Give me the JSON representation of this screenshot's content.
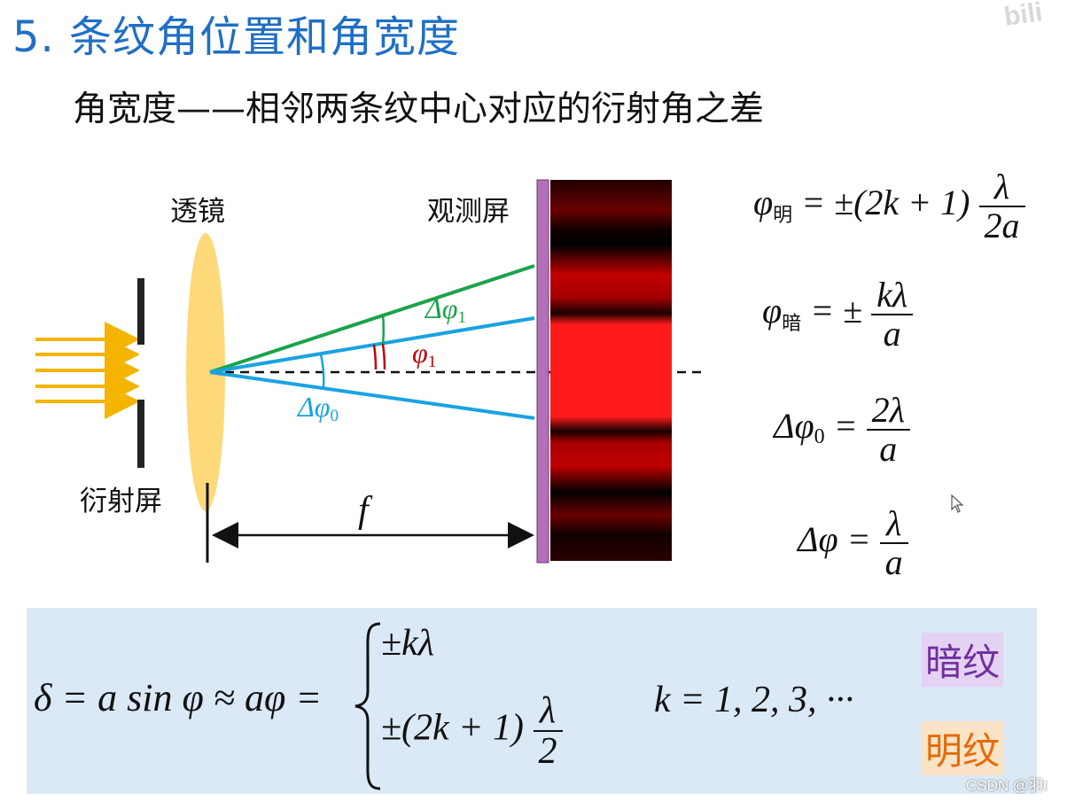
{
  "title": "5. 条纹角位置和角宽度",
  "subtitle": "角宽度——相邻两条纹中心对应的衍射角之差",
  "watermark": "bili",
  "labels": {
    "lens": "透镜",
    "screen": "观测屏",
    "slit_screen": "衍射屏",
    "focal": "f",
    "dphi1": "Δφ",
    "dphi1_sub": "1",
    "phi1": "φ",
    "phi1_sub": "1",
    "dphi0": "Δφ",
    "dphi0_sub": "0"
  },
  "formulas": {
    "bright": {
      "lhs": "φ",
      "sub": "明",
      "mid": "= ±(2k + 1)",
      "num": "λ",
      "den": "2a"
    },
    "dark": {
      "lhs": "φ",
      "sub": "暗",
      "mid": "= ±",
      "num": "kλ",
      "den": "a"
    },
    "central": {
      "lhs": "Δφ",
      "sub": "0",
      "mid": "=",
      "num": "2λ",
      "den": "a"
    },
    "width": {
      "lhs": "Δφ",
      "mid": "=",
      "num": "λ",
      "den": "a"
    }
  },
  "bottom": {
    "delta_eq": "δ = a sin φ ≈ aφ =",
    "case_dark": "±kλ",
    "case_bright": "±(2k + 1)",
    "case_bright_num": "λ",
    "case_bright_den": "2",
    "k_values": "k = 1, 2, 3, ···",
    "tag_dark": "暗纹",
    "tag_bright": "明纹"
  },
  "credit": "CSDN @羽t",
  "colors": {
    "title": "#1f6fc5",
    "lens": "#fdd97a",
    "green_ray": "#1aa34a",
    "blue_ray": "#19a3e0",
    "red_angle": "#c00000",
    "fringe_red": "#ff1a1a",
    "bottom_box": "#dbe8f5"
  }
}
